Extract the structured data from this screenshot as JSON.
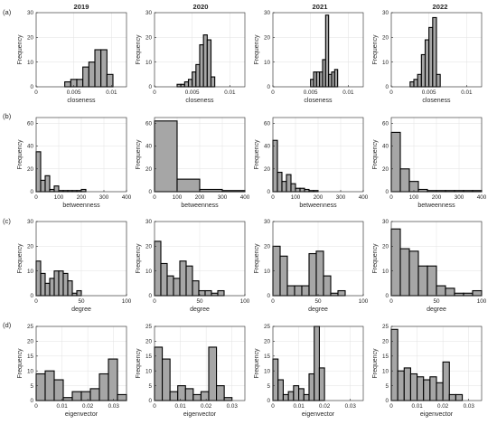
{
  "figure": {
    "columns": [
      "2019",
      "2020",
      "2021",
      "2022"
    ],
    "rows": [
      "(a)",
      "(b)",
      "(c)",
      "(d)"
    ]
  },
  "chart_data": [
    {
      "type": "bar",
      "metric": "closeness",
      "xlabel": "closeness",
      "ylabel": "Frequency",
      "xlim": [
        0,
        0.012
      ],
      "ylim": [
        0,
        30
      ],
      "xticks": [
        0,
        0.005,
        0.01
      ],
      "xtick_labels": [
        "0",
        "0.005",
        "0.01"
      ],
      "yticks": [
        0,
        10,
        20,
        30
      ],
      "grid": true,
      "panels": [
        {
          "year": "2019",
          "bins": [
            [
              0.0038,
              0.0046,
              2
            ],
            [
              0.0046,
              0.0054,
              3
            ],
            [
              0.0054,
              0.0062,
              3
            ],
            [
              0.0062,
              0.007,
              8
            ],
            [
              0.007,
              0.0078,
              10
            ],
            [
              0.0078,
              0.0086,
              15
            ],
            [
              0.0086,
              0.0094,
              15
            ],
            [
              0.0094,
              0.0102,
              5
            ]
          ]
        },
        {
          "year": "2020",
          "bins": [
            [
              0.003,
              0.0035,
              1
            ],
            [
              0.0035,
              0.004,
              1
            ],
            [
              0.004,
              0.0045,
              2
            ],
            [
              0.0045,
              0.005,
              3
            ],
            [
              0.005,
              0.0055,
              6
            ],
            [
              0.0055,
              0.006,
              9
            ],
            [
              0.006,
              0.0065,
              17
            ],
            [
              0.0065,
              0.007,
              21
            ],
            [
              0.007,
              0.0075,
              19
            ],
            [
              0.0075,
              0.008,
              4
            ]
          ]
        },
        {
          "year": "2021",
          "bins": [
            [
              0.005,
              0.0054,
              3
            ],
            [
              0.0054,
              0.0058,
              6
            ],
            [
              0.0058,
              0.0062,
              6
            ],
            [
              0.0062,
              0.0066,
              6
            ],
            [
              0.0066,
              0.007,
              11
            ],
            [
              0.007,
              0.0074,
              29
            ],
            [
              0.0074,
              0.0078,
              5
            ],
            [
              0.0078,
              0.0082,
              6
            ],
            [
              0.0082,
              0.0086,
              7
            ]
          ]
        },
        {
          "year": "2022",
          "bins": [
            [
              0.0025,
              0.003,
              2
            ],
            [
              0.003,
              0.0035,
              3
            ],
            [
              0.0035,
              0.004,
              5
            ],
            [
              0.004,
              0.0045,
              13
            ],
            [
              0.0045,
              0.005,
              19
            ],
            [
              0.005,
              0.0055,
              24
            ],
            [
              0.0055,
              0.006,
              28
            ],
            [
              0.006,
              0.0065,
              5
            ]
          ]
        }
      ]
    },
    {
      "type": "bar",
      "metric": "betweenness",
      "xlabel": "betweenness",
      "ylabel": "Frequency",
      "xlim": [
        0,
        400
      ],
      "ylim": [
        0,
        65
      ],
      "xticks": [
        0,
        100,
        200,
        300,
        400
      ],
      "xtick_labels": [
        "0",
        "100",
        "200",
        "300",
        "400"
      ],
      "yticks": [
        0,
        20,
        40,
        60
      ],
      "grid": true,
      "panels": [
        {
          "year": "2019",
          "bins": [
            [
              0,
              20,
              35
            ],
            [
              20,
              40,
              10
            ],
            [
              40,
              60,
              14
            ],
            [
              60,
              80,
              2
            ],
            [
              80,
              100,
              5
            ],
            [
              100,
              120,
              1
            ],
            [
              120,
              140,
              1
            ],
            [
              140,
              160,
              1
            ],
            [
              160,
              180,
              1
            ],
            [
              180,
              200,
              1
            ],
            [
              200,
              220,
              2
            ]
          ]
        },
        {
          "year": "2020",
          "bins": [
            [
              0,
              100,
              62
            ],
            [
              100,
              200,
              11
            ],
            [
              200,
              300,
              2
            ],
            [
              300,
              400,
              1
            ]
          ]
        },
        {
          "year": "2021",
          "bins": [
            [
              0,
              20,
              45
            ],
            [
              20,
              40,
              17
            ],
            [
              40,
              60,
              9
            ],
            [
              60,
              80,
              15
            ],
            [
              80,
              100,
              7
            ],
            [
              100,
              120,
              3
            ],
            [
              120,
              140,
              3
            ],
            [
              140,
              160,
              2
            ],
            [
              160,
              180,
              1
            ],
            [
              180,
              200,
              1
            ]
          ]
        },
        {
          "year": "2022",
          "bins": [
            [
              0,
              40,
              52
            ],
            [
              40,
              80,
              20
            ],
            [
              80,
              120,
              9
            ],
            [
              120,
              160,
              2
            ],
            [
              160,
              200,
              1
            ],
            [
              200,
              240,
              1
            ],
            [
              240,
              280,
              1
            ],
            [
              280,
              320,
              1
            ],
            [
              320,
              360,
              1
            ],
            [
              360,
              400,
              1
            ]
          ]
        }
      ]
    },
    {
      "type": "bar",
      "metric": "degree",
      "xlabel": "degree",
      "ylabel": "Frequency",
      "xlim": [
        0,
        100
      ],
      "ylim": [
        0,
        30
      ],
      "xticks": [
        0,
        50,
        100
      ],
      "xtick_labels": [
        "0",
        "50",
        "100"
      ],
      "yticks": [
        0,
        10,
        20,
        30
      ],
      "grid": true,
      "panels": [
        {
          "year": "2019",
          "bins": [
            [
              0,
              5,
              14
            ],
            [
              5,
              10,
              9
            ],
            [
              10,
              15,
              5
            ],
            [
              15,
              20,
              7
            ],
            [
              20,
              25,
              10
            ],
            [
              25,
              30,
              10
            ],
            [
              30,
              35,
              9
            ],
            [
              35,
              40,
              6
            ],
            [
              40,
              45,
              1
            ],
            [
              45,
              50,
              2
            ]
          ]
        },
        {
          "year": "2020",
          "bins": [
            [
              0,
              7,
              22
            ],
            [
              7,
              14,
              13
            ],
            [
              14,
              21,
              8
            ],
            [
              21,
              28,
              7
            ],
            [
              28,
              35,
              14
            ],
            [
              35,
              42,
              12
            ],
            [
              42,
              49,
              6
            ],
            [
              49,
              56,
              2
            ],
            [
              56,
              63,
              2
            ],
            [
              63,
              70,
              1
            ],
            [
              70,
              77,
              2
            ]
          ]
        },
        {
          "year": "2021",
          "bins": [
            [
              0,
              8,
              20
            ],
            [
              8,
              16,
              16
            ],
            [
              16,
              24,
              4
            ],
            [
              24,
              32,
              4
            ],
            [
              32,
              40,
              4
            ],
            [
              40,
              48,
              17
            ],
            [
              48,
              56,
              18
            ],
            [
              56,
              64,
              8
            ],
            [
              64,
              72,
              1
            ],
            [
              72,
              80,
              2
            ]
          ]
        },
        {
          "year": "2022",
          "bins": [
            [
              0,
              10,
              27
            ],
            [
              10,
              20,
              19
            ],
            [
              20,
              30,
              18
            ],
            [
              30,
              40,
              12
            ],
            [
              40,
              50,
              12
            ],
            [
              50,
              60,
              4
            ],
            [
              60,
              70,
              3
            ],
            [
              70,
              80,
              1
            ],
            [
              80,
              90,
              1
            ],
            [
              90,
              100,
              2
            ]
          ]
        }
      ]
    },
    {
      "type": "bar",
      "metric": "eigenvector",
      "xlabel": "eigenvector",
      "ylabel": "Frequency",
      "xlim": [
        0,
        0.035
      ],
      "ylim": [
        0,
        25
      ],
      "xticks": [
        0,
        0.01,
        0.02,
        0.03
      ],
      "xtick_labels": [
        "0",
        "0.01",
        "0.02",
        "0.03"
      ],
      "yticks": [
        0,
        5,
        10,
        15,
        20,
        25
      ],
      "grid": true,
      "panels": [
        {
          "year": "2019",
          "bins": [
            [
              0,
              0.0035,
              9
            ],
            [
              0.0035,
              0.007,
              10
            ],
            [
              0.007,
              0.0105,
              7
            ],
            [
              0.0105,
              0.014,
              1
            ],
            [
              0.014,
              0.0175,
              3
            ],
            [
              0.0175,
              0.021,
              3
            ],
            [
              0.021,
              0.0245,
              4
            ],
            [
              0.0245,
              0.028,
              9
            ],
            [
              0.028,
              0.0315,
              14
            ],
            [
              0.0315,
              0.035,
              2
            ]
          ]
        },
        {
          "year": "2020",
          "bins": [
            [
              0,
              0.003,
              18
            ],
            [
              0.003,
              0.006,
              14
            ],
            [
              0.006,
              0.009,
              3
            ],
            [
              0.009,
              0.012,
              5
            ],
            [
              0.012,
              0.015,
              4
            ],
            [
              0.015,
              0.018,
              2
            ],
            [
              0.018,
              0.021,
              3
            ],
            [
              0.021,
              0.024,
              18
            ],
            [
              0.024,
              0.027,
              5
            ],
            [
              0.027,
              0.03,
              1
            ]
          ]
        },
        {
          "year": "2021",
          "bins": [
            [
              0,
              0.002,
              14
            ],
            [
              0.002,
              0.004,
              7
            ],
            [
              0.004,
              0.006,
              2
            ],
            [
              0.006,
              0.008,
              3
            ],
            [
              0.008,
              0.01,
              5
            ],
            [
              0.01,
              0.012,
              4
            ],
            [
              0.012,
              0.014,
              2
            ],
            [
              0.014,
              0.016,
              9
            ],
            [
              0.016,
              0.018,
              25
            ],
            [
              0.018,
              0.02,
              11
            ]
          ]
        },
        {
          "year": "2022",
          "bins": [
            [
              0,
              0.0025,
              24
            ],
            [
              0.0025,
              0.005,
              10
            ],
            [
              0.005,
              0.0075,
              11
            ],
            [
              0.0075,
              0.01,
              9
            ],
            [
              0.01,
              0.0125,
              8
            ],
            [
              0.0125,
              0.015,
              7
            ],
            [
              0.015,
              0.0175,
              8
            ],
            [
              0.0175,
              0.02,
              6
            ],
            [
              0.02,
              0.0225,
              13
            ],
            [
              0.0225,
              0.025,
              2
            ],
            [
              0.025,
              0.0275,
              2
            ]
          ]
        }
      ]
    }
  ]
}
